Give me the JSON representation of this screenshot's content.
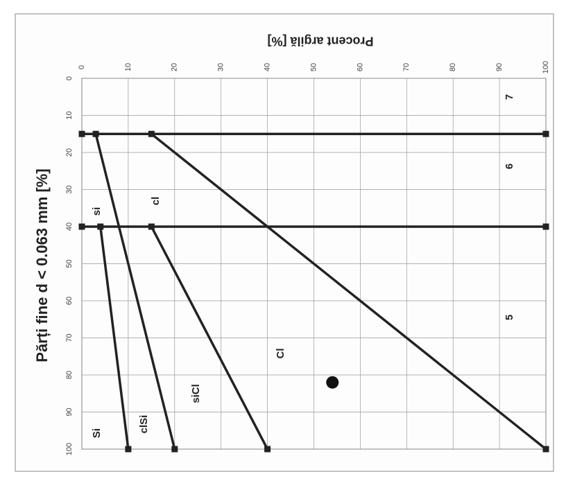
{
  "chart_data": {
    "type": "line",
    "title": "Părți fine d < 0.063 mm [%]",
    "y_axis_label": "Procent argilă [%]",
    "xlim": [
      0,
      100
    ],
    "xticks": [
      0,
      10,
      20,
      30,
      40,
      50,
      60,
      70,
      80,
      90,
      100
    ],
    "ylim": [
      0,
      100
    ],
    "yticks": [
      0,
      10,
      20,
      30,
      40,
      50,
      60,
      70,
      80,
      90,
      100
    ],
    "grid": true,
    "series": [
      {
        "color": "#222222",
        "mode": "line",
        "x": [
          15,
          15
        ],
        "values": [
          0,
          100
        ]
      },
      {
        "color": "#222222",
        "mode": "line",
        "x": [
          40,
          40
        ],
        "values": [
          0,
          100
        ]
      },
      {
        "color": "#222222",
        "mode": "line",
        "x": [
          15,
          100
        ],
        "values": [
          15,
          100
        ]
      },
      {
        "color": "#222222",
        "mode": "line",
        "x": [
          15,
          100
        ],
        "values": [
          3,
          20
        ]
      },
      {
        "color": "#222222",
        "mode": "line",
        "x": [
          40,
          100
        ],
        "values": [
          4,
          10
        ]
      },
      {
        "color": "#222222",
        "mode": "line",
        "x": [
          40,
          100
        ],
        "values": [
          15,
          40
        ]
      },
      {
        "color": "#111111",
        "mode": "point",
        "x": [
          82
        ],
        "values": [
          54
        ]
      }
    ],
    "annotations": [
      "7",
      "6",
      "5",
      "si",
      "cl",
      "Cl",
      "siCl",
      "clSi",
      "Si"
    ]
  }
}
